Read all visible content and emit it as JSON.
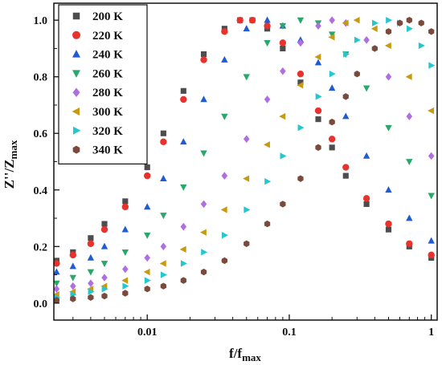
{
  "chart_data": {
    "type": "scatter",
    "x_scale": "log",
    "xlim": [
      0.0022,
      1.1
    ],
    "ylim": [
      -0.06,
      1.06
    ],
    "x_ticks": [
      {
        "value": 0.01,
        "label": "0.01"
      },
      {
        "value": 0.1,
        "label": "0.1"
      },
      {
        "value": 1,
        "label": "1"
      }
    ],
    "y_ticks": [
      {
        "value": 0.0,
        "label": "0.0"
      },
      {
        "value": 0.2,
        "label": "0.2"
      },
      {
        "value": 0.4,
        "label": "0.4"
      },
      {
        "value": 0.6,
        "label": "0.6"
      },
      {
        "value": 0.8,
        "label": "0.8"
      },
      {
        "value": 1.0,
        "label": "1.0"
      }
    ],
    "xlabel": {
      "main": "f/f",
      "sub": "max"
    },
    "ylabel": {
      "main": "Z''/Z",
      "sub": "max"
    },
    "grid": false,
    "legend_position": "top-left",
    "series": [
      {
        "name": "200 K",
        "marker": "square",
        "color": "#4d4d4d",
        "x": [
          0.0023,
          0.003,
          0.004,
          0.005,
          0.007,
          0.01,
          0.013,
          0.018,
          0.025,
          0.035,
          0.045,
          0.055,
          0.07,
          0.09,
          0.12,
          0.16,
          0.2,
          0.25,
          0.35,
          0.5,
          0.7,
          1.0
        ],
        "y": [
          0.15,
          0.18,
          0.23,
          0.28,
          0.36,
          0.48,
          0.6,
          0.75,
          0.88,
          0.97,
          1.0,
          1.0,
          0.97,
          0.9,
          0.78,
          0.65,
          0.55,
          0.45,
          0.35,
          0.26,
          0.2,
          0.16
        ]
      },
      {
        "name": "220 K",
        "marker": "circle",
        "color": "#e8322b",
        "x": [
          0.0023,
          0.003,
          0.004,
          0.005,
          0.007,
          0.01,
          0.013,
          0.018,
          0.025,
          0.035,
          0.045,
          0.055,
          0.07,
          0.09,
          0.12,
          0.16,
          0.2,
          0.25,
          0.35,
          0.5,
          0.7,
          1.0
        ],
        "y": [
          0.14,
          0.17,
          0.21,
          0.26,
          0.34,
          0.45,
          0.57,
          0.72,
          0.86,
          0.96,
          1.0,
          1.0,
          0.98,
          0.92,
          0.81,
          0.68,
          0.58,
          0.48,
          0.37,
          0.28,
          0.21,
          0.17
        ]
      },
      {
        "name": "240 K",
        "marker": "triangle-up",
        "color": "#1f5bd1",
        "x": [
          0.0023,
          0.003,
          0.004,
          0.005,
          0.007,
          0.01,
          0.013,
          0.018,
          0.025,
          0.035,
          0.05,
          0.07,
          0.09,
          0.12,
          0.16,
          0.2,
          0.25,
          0.35,
          0.5,
          0.7,
          1.0
        ],
        "y": [
          0.11,
          0.13,
          0.16,
          0.2,
          0.26,
          0.34,
          0.44,
          0.57,
          0.72,
          0.86,
          0.97,
          1.0,
          0.98,
          0.93,
          0.85,
          0.76,
          0.66,
          0.52,
          0.4,
          0.3,
          0.22
        ]
      },
      {
        "name": "260 K",
        "marker": "triangle-down",
        "color": "#2aa86a",
        "x": [
          0.0023,
          0.003,
          0.004,
          0.005,
          0.007,
          0.01,
          0.013,
          0.018,
          0.025,
          0.035,
          0.05,
          0.07,
          0.09,
          0.12,
          0.16,
          0.2,
          0.25,
          0.35,
          0.5,
          0.7,
          1.0
        ],
        "y": [
          0.07,
          0.09,
          0.11,
          0.14,
          0.18,
          0.24,
          0.31,
          0.41,
          0.53,
          0.66,
          0.8,
          0.92,
          0.98,
          1.0,
          0.99,
          0.95,
          0.88,
          0.76,
          0.62,
          0.5,
          0.38
        ]
      },
      {
        "name": "280 K",
        "marker": "diamond",
        "color": "#b06ee0",
        "x": [
          0.0023,
          0.003,
          0.004,
          0.005,
          0.007,
          0.01,
          0.013,
          0.018,
          0.025,
          0.035,
          0.05,
          0.07,
          0.09,
          0.12,
          0.16,
          0.2,
          0.25,
          0.35,
          0.5,
          0.7,
          1.0
        ],
        "y": [
          0.05,
          0.06,
          0.07,
          0.09,
          0.12,
          0.16,
          0.2,
          0.27,
          0.35,
          0.45,
          0.58,
          0.72,
          0.82,
          0.92,
          0.98,
          1.0,
          0.99,
          0.93,
          0.8,
          0.66,
          0.52
        ]
      },
      {
        "name": "300 K",
        "marker": "triangle-left",
        "color": "#c89a12",
        "x": [
          0.0023,
          0.003,
          0.004,
          0.005,
          0.007,
          0.01,
          0.013,
          0.018,
          0.025,
          0.035,
          0.05,
          0.07,
          0.09,
          0.12,
          0.16,
          0.2,
          0.25,
          0.3,
          0.4,
          0.5,
          0.7,
          1.0
        ],
        "y": [
          0.03,
          0.04,
          0.05,
          0.06,
          0.08,
          0.11,
          0.14,
          0.19,
          0.25,
          0.33,
          0.44,
          0.56,
          0.66,
          0.77,
          0.87,
          0.94,
          0.99,
          1.0,
          0.97,
          0.91,
          0.8,
          0.68
        ]
      },
      {
        "name": "320 K",
        "marker": "triangle-right",
        "color": "#22c8d0",
        "x": [
          0.0023,
          0.003,
          0.004,
          0.005,
          0.007,
          0.01,
          0.013,
          0.018,
          0.025,
          0.035,
          0.05,
          0.07,
          0.09,
          0.12,
          0.16,
          0.2,
          0.25,
          0.3,
          0.4,
          0.5,
          0.6,
          0.7,
          0.85,
          1.0
        ],
        "y": [
          0.02,
          0.03,
          0.04,
          0.05,
          0.06,
          0.08,
          0.1,
          0.14,
          0.18,
          0.24,
          0.33,
          0.43,
          0.52,
          0.62,
          0.73,
          0.81,
          0.88,
          0.93,
          0.99,
          1.0,
          0.99,
          0.97,
          0.91,
          0.84
        ]
      },
      {
        "name": "340 K",
        "marker": "hexagon",
        "color": "#7a4a3c",
        "x": [
          0.0023,
          0.003,
          0.004,
          0.005,
          0.007,
          0.01,
          0.013,
          0.018,
          0.025,
          0.035,
          0.05,
          0.07,
          0.09,
          0.12,
          0.16,
          0.2,
          0.25,
          0.3,
          0.4,
          0.5,
          0.6,
          0.7,
          0.85,
          1.0
        ],
        "y": [
          0.01,
          0.015,
          0.02,
          0.025,
          0.035,
          0.05,
          0.06,
          0.08,
          0.11,
          0.15,
          0.21,
          0.28,
          0.35,
          0.44,
          0.55,
          0.64,
          0.73,
          0.81,
          0.9,
          0.96,
          0.99,
          1.0,
          0.99,
          0.96
        ]
      }
    ]
  }
}
